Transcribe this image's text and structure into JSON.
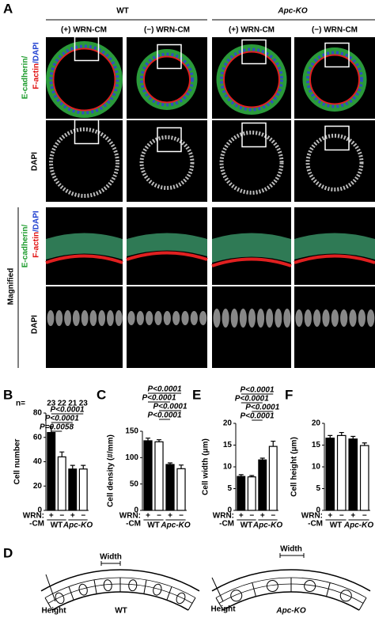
{
  "figure": {
    "panel_a": {
      "letter": "A",
      "groups": [
        "WT",
        "Apc-KO"
      ],
      "conditions": [
        "(+) WRN-CM",
        "(−) WRN-CM",
        "(+) WRN-CM",
        "(−) WRN-CM"
      ],
      "row_labels": {
        "merge_line1": "E-cadherin/",
        "merge_line2a": "F-actin",
        "merge_line2b": "/DAPI",
        "dapi": "DAPI",
        "magnified": "Magnified"
      }
    },
    "panel_d": {
      "letter": "D",
      "width": "Width",
      "height": "Height",
      "wt": "WT",
      "ko": "Apc-KO"
    }
  },
  "chart_data": [
    {
      "type": "bar",
      "panel": "B",
      "y_label": "Cell number",
      "categories": [
        "+",
        "−",
        "+",
        "−"
      ],
      "groups": [
        "WT",
        "Apc-KO"
      ],
      "axis_caption": [
        "WRN:",
        "-CM"
      ],
      "values": [
        64,
        44,
        34,
        34
      ],
      "errors": [
        5,
        4,
        3,
        3
      ],
      "colors": [
        "#000000",
        "#ffffff",
        "#000000",
        "#ffffff"
      ],
      "n_label": "n=",
      "n_values": [
        23,
        22,
        21,
        23
      ],
      "comparisons": [
        "P<0.0001",
        "P<0.0001",
        "P=0.0058"
      ],
      "ylim": [
        0,
        80
      ],
      "yticks": [
        0,
        20,
        40,
        60,
        80
      ]
    },
    {
      "type": "bar",
      "panel": "C",
      "y_label": "Cell density (#/mm)",
      "categories": [
        "+",
        "−",
        "+",
        "−"
      ],
      "groups": [
        "WT",
        "Apc-KO"
      ],
      "axis_caption": [
        "WRN:",
        "-CM"
      ],
      "values": [
        132,
        130,
        87,
        79
      ],
      "errors": [
        5,
        4,
        3,
        7
      ],
      "colors": [
        "#000000",
        "#ffffff",
        "#000000",
        "#ffffff"
      ],
      "comparisons": [
        "P<0.0001",
        "P<0.0001",
        "P<0.0001",
        "P<0.0001"
      ],
      "ylim": [
        0,
        150
      ],
      "yticks": [
        0,
        50,
        100,
        150
      ]
    },
    {
      "type": "bar",
      "panel": "E",
      "y_label": "Cell width (μm)",
      "categories": [
        "+",
        "−",
        "+",
        "−"
      ],
      "groups": [
        "WT",
        "Apc-KO"
      ],
      "axis_caption": [
        "WRN:",
        "-CM"
      ],
      "values": [
        7.8,
        7.7,
        11.6,
        14.7
      ],
      "errors": [
        0.4,
        0.3,
        0.4,
        1.2
      ],
      "colors": [
        "#000000",
        "#ffffff",
        "#000000",
        "#ffffff"
      ],
      "comparisons": [
        "P<0.0001",
        "P<0.0001",
        "P<0.0001",
        "P<0.0001"
      ],
      "ylim": [
        0,
        20
      ],
      "yticks": [
        0,
        5,
        10,
        15,
        20
      ]
    },
    {
      "type": "bar",
      "panel": "F",
      "y_label": "Cell height (μm)",
      "categories": [
        "+",
        "−",
        "+",
        "−"
      ],
      "groups": [
        "WT",
        "Apc-KO"
      ],
      "axis_caption": [
        "WRN:",
        "-CM"
      ],
      "values": [
        16.6,
        17.2,
        16.4,
        14.9
      ],
      "errors": [
        0.6,
        0.7,
        0.6,
        0.6
      ],
      "colors": [
        "#000000",
        "#ffffff",
        "#000000",
        "#ffffff"
      ],
      "ylim": [
        0,
        20
      ],
      "yticks": [
        0,
        5,
        10,
        15,
        20
      ]
    }
  ]
}
